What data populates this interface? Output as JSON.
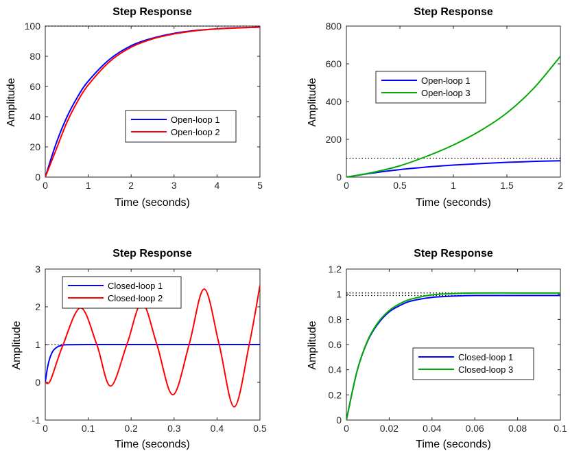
{
  "chart_data": [
    {
      "type": "line",
      "title": "Step Response",
      "xlabel": "Time (seconds)",
      "ylabel": "Amplitude",
      "xlim": [
        0,
        5
      ],
      "ylim": [
        0,
        100
      ],
      "xticks": [
        "0",
        "1",
        "2",
        "3",
        "4",
        "5"
      ],
      "yticks": [
        "0",
        "20",
        "40",
        "60",
        "80",
        "100"
      ],
      "reference": {
        "y": 100,
        "style": "dotted"
      },
      "legend_position": "center-right",
      "series": [
        {
          "name": "Open-loop 1",
          "color": "#0000ff",
          "x": [
            0,
            0.25,
            0.5,
            0.75,
            1.0,
            1.5,
            2.0,
            2.5,
            3.0,
            3.5,
            4.0,
            4.5,
            5.0
          ],
          "y": [
            0,
            22,
            39.5,
            53,
            63.5,
            78,
            87,
            92,
            95.2,
            97.1,
            98.2,
            98.9,
            99.3
          ]
        },
        {
          "name": "Open-loop 2",
          "color": "#ff0000",
          "x": [
            0,
            0.25,
            0.5,
            0.75,
            1.0,
            1.5,
            2.0,
            2.5,
            3.0,
            3.5,
            4.0,
            4.5,
            5.0
          ],
          "y": [
            0,
            18,
            36,
            50,
            61,
            76.5,
            86,
            91.5,
            94.8,
            96.9,
            98.1,
            98.8,
            99.3
          ]
        }
      ]
    },
    {
      "type": "line",
      "title": "Step Response",
      "xlabel": "Time (seconds)",
      "ylabel": "Amplitude",
      "xlim": [
        0,
        2
      ],
      "ylim": [
        0,
        800
      ],
      "xticks": [
        "0",
        "0.5",
        "1",
        "1.5",
        "2"
      ],
      "yticks": [
        "0",
        "200",
        "400",
        "600",
        "800"
      ],
      "reference": {
        "y": 100,
        "style": "dotted"
      },
      "legend_position": "upper-center",
      "series": [
        {
          "name": "Open-loop 1",
          "color": "#0000ff",
          "x": [
            0,
            0.25,
            0.5,
            0.75,
            1.0,
            1.25,
            1.5,
            1.75,
            2.0
          ],
          "y": [
            0,
            22,
            39.5,
            53,
            63.5,
            71.5,
            78,
            83,
            86.5
          ]
        },
        {
          "name": "Open-loop 3",
          "color": "#00aa00",
          "x": [
            0,
            0.25,
            0.5,
            0.75,
            1.0,
            1.25,
            1.5,
            1.75,
            2.0
          ],
          "y": [
            0,
            25,
            60,
            110,
            170,
            245,
            340,
            470,
            640
          ]
        }
      ]
    },
    {
      "type": "line",
      "title": "Step Response",
      "xlabel": "Time (seconds)",
      "ylabel": "Amplitude",
      "xlim": [
        0,
        0.5
      ],
      "ylim": [
        -1,
        3
      ],
      "xticks": [
        "0",
        "0.1",
        "0.2",
        "0.3",
        "0.4",
        "0.5"
      ],
      "yticks": [
        "-1",
        "0",
        "1",
        "2",
        "3"
      ],
      "reference": {
        "y": 1,
        "style": "dotted"
      },
      "legend_position": "top",
      "series": [
        {
          "name": "Closed-loop 1",
          "color": "#0000ff",
          "x": [
            0,
            0.005,
            0.01,
            0.015,
            0.02,
            0.03,
            0.04,
            0.05,
            0.1,
            0.2,
            0.3,
            0.4,
            0.5
          ],
          "y": [
            0,
            0.38,
            0.62,
            0.77,
            0.86,
            0.95,
            0.98,
            0.995,
            1.0,
            1.0,
            1.0,
            1.0,
            1.0
          ]
        },
        {
          "name": "Closed-loop 2",
          "color": "#ff0000",
          "x": [
            0,
            0.012,
            0.04,
            0.082,
            0.12,
            0.152,
            0.19,
            0.225,
            0.26,
            0.297,
            0.335,
            0.37,
            0.405,
            0.44,
            0.475,
            0.5
          ],
          "y": [
            0,
            0.05,
            0.95,
            1.97,
            1.0,
            -0.1,
            1.0,
            2.1,
            1.0,
            -0.33,
            1.0,
            2.47,
            1.0,
            -0.65,
            1.0,
            2.57
          ]
        }
      ]
    },
    {
      "type": "line",
      "title": "Step Response",
      "xlabel": "Time (seconds)",
      "ylabel": "Amplitude",
      "xlim": [
        0,
        0.1
      ],
      "ylim": [
        0,
        1.2
      ],
      "xticks": [
        "0",
        "0.02",
        "0.04",
        "0.06",
        "0.08",
        "0.1"
      ],
      "yticks": [
        "0",
        "0.2",
        "0.4",
        "0.6",
        "0.8",
        "1",
        "1.2"
      ],
      "reference": {
        "y": [
          0.99,
          1.01
        ],
        "style": "dotted"
      },
      "legend_position": "lower-right",
      "series": [
        {
          "name": "Closed-loop 1",
          "color": "#0000ff",
          "x": [
            0,
            0.005,
            0.01,
            0.015,
            0.02,
            0.025,
            0.03,
            0.04,
            0.05,
            0.06,
            0.08,
            0.1
          ],
          "y": [
            0,
            0.39,
            0.63,
            0.77,
            0.86,
            0.91,
            0.945,
            0.975,
            0.985,
            0.99,
            0.99,
            0.99
          ]
        },
        {
          "name": "Closed-loop 3",
          "color": "#00aa00",
          "x": [
            0,
            0.005,
            0.01,
            0.015,
            0.02,
            0.025,
            0.03,
            0.04,
            0.05,
            0.06,
            0.08,
            0.1
          ],
          "y": [
            0,
            0.39,
            0.635,
            0.78,
            0.87,
            0.925,
            0.96,
            0.995,
            1.005,
            1.01,
            1.01,
            1.01
          ]
        }
      ]
    }
  ]
}
